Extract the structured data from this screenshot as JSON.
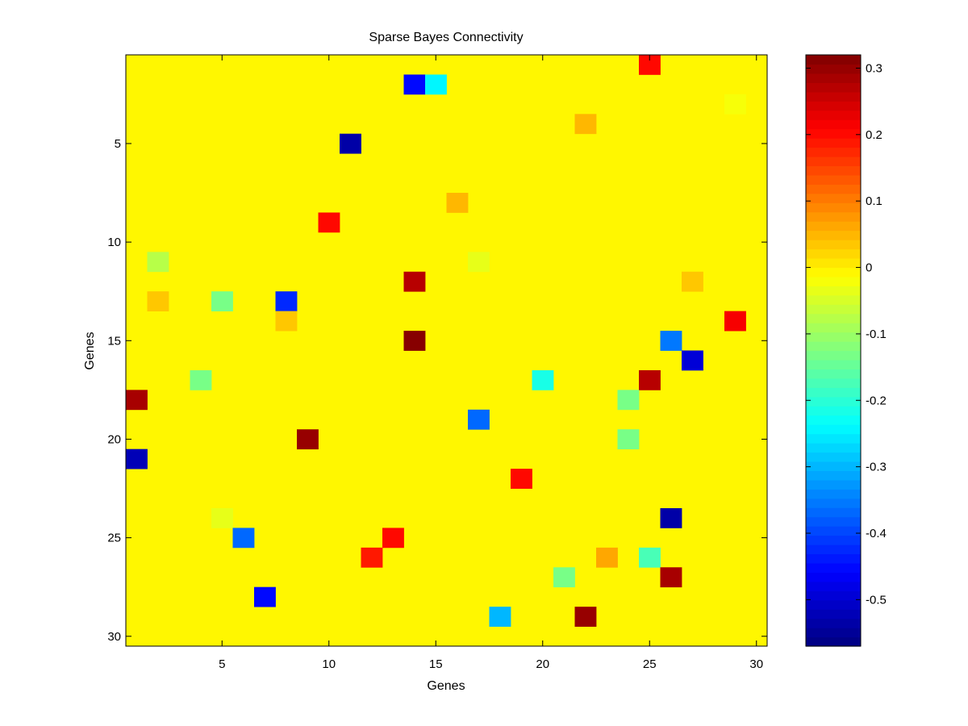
{
  "chart_data": {
    "type": "heatmap",
    "title": "Sparse Bayes Connectivity",
    "xlabel": "Genes",
    "ylabel": "Genes",
    "rows": 30,
    "cols": 30,
    "x_ticks": [
      "5",
      "10",
      "15",
      "20",
      "25",
      "30"
    ],
    "y_ticks": [
      "5",
      "10",
      "15",
      "20",
      "25",
      "30"
    ],
    "y_axis_direction": "top-to-bottom",
    "colormap": "jet",
    "clim": [
      -0.57,
      0.32
    ],
    "background_value": 0.0,
    "colorbar_ticks": [
      "0.3",
      "0.2",
      "0.1",
      "0",
      "-0.1",
      "-0.2",
      "-0.3",
      "-0.4",
      "-0.5"
    ],
    "colorbar_placement": "right",
    "grid": false,
    "cells": [
      {
        "row": 1,
        "col": 25,
        "value": 0.2
      },
      {
        "row": 2,
        "col": 14,
        "value": -0.45
      },
      {
        "row": 2,
        "col": 15,
        "value": -0.24
      },
      {
        "row": 3,
        "col": 29,
        "value": -0.02
      },
      {
        "row": 4,
        "col": 22,
        "value": 0.05
      },
      {
        "row": 5,
        "col": 11,
        "value": -0.54
      },
      {
        "row": 6,
        "col": 1,
        "value": -0.01
      },
      {
        "row": 8,
        "col": 16,
        "value": 0.05
      },
      {
        "row": 9,
        "col": 10,
        "value": 0.2
      },
      {
        "row": 11,
        "col": 2,
        "value": -0.07
      },
      {
        "row": 11,
        "col": 17,
        "value": -0.03
      },
      {
        "row": 12,
        "col": 14,
        "value": 0.27
      },
      {
        "row": 12,
        "col": 27,
        "value": 0.04
      },
      {
        "row": 13,
        "col": 2,
        "value": 0.04
      },
      {
        "row": 13,
        "col": 5,
        "value": -0.13
      },
      {
        "row": 13,
        "col": 8,
        "value": -0.43
      },
      {
        "row": 14,
        "col": 8,
        "value": 0.04
      },
      {
        "row": 14,
        "col": 29,
        "value": 0.21
      },
      {
        "row": 15,
        "col": 14,
        "value": 0.31
      },
      {
        "row": 15,
        "col": 26,
        "value": -0.36
      },
      {
        "row": 16,
        "col": 27,
        "value": -0.49
      },
      {
        "row": 17,
        "col": 4,
        "value": -0.13
      },
      {
        "row": 17,
        "col": 20,
        "value": -0.22
      },
      {
        "row": 17,
        "col": 25,
        "value": 0.27
      },
      {
        "row": 18,
        "col": 1,
        "value": 0.29
      },
      {
        "row": 18,
        "col": 24,
        "value": -0.13
      },
      {
        "row": 19,
        "col": 17,
        "value": -0.37
      },
      {
        "row": 20,
        "col": 9,
        "value": 0.3
      },
      {
        "row": 20,
        "col": 24,
        "value": -0.13
      },
      {
        "row": 21,
        "col": 1,
        "value": -0.52
      },
      {
        "row": 22,
        "col": 19,
        "value": 0.2
      },
      {
        "row": 24,
        "col": 5,
        "value": -0.03
      },
      {
        "row": 24,
        "col": 26,
        "value": -0.53
      },
      {
        "row": 25,
        "col": 6,
        "value": -0.37
      },
      {
        "row": 25,
        "col": 13,
        "value": 0.2
      },
      {
        "row": 26,
        "col": 12,
        "value": 0.19
      },
      {
        "row": 26,
        "col": 23,
        "value": 0.06
      },
      {
        "row": 26,
        "col": 25,
        "value": -0.18
      },
      {
        "row": 27,
        "col": 21,
        "value": -0.13
      },
      {
        "row": 27,
        "col": 26,
        "value": 0.29
      },
      {
        "row": 28,
        "col": 7,
        "value": -0.45
      },
      {
        "row": 29,
        "col": 18,
        "value": -0.3
      },
      {
        "row": 29,
        "col": 22,
        "value": 0.3
      }
    ]
  }
}
